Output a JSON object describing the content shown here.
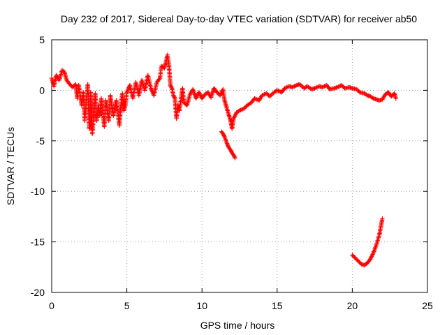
{
  "chart_data": {
    "type": "scatter",
    "title": "Day 232 of 2017, Sidereal Day-to-day VTEC variation (SDTVAR) for receiver ab50",
    "xlabel": "GPS time / hours",
    "ylabel": "SDTVAR / TECUs",
    "xlim": [
      0,
      25
    ],
    "ylim": [
      -20,
      5
    ],
    "xticks": [
      0,
      5,
      10,
      15,
      20,
      25
    ],
    "yticks": [
      5,
      0,
      -5,
      -10,
      -15,
      -20
    ],
    "grid": true,
    "marker": "+",
    "color": "#ff0000",
    "series": [
      {
        "name": "SDTVAR main",
        "points": [
          [
            0.0,
            1.2
          ],
          [
            0.15,
            0.4
          ],
          [
            0.3,
            1.5
          ],
          [
            0.5,
            1.0
          ],
          [
            0.7,
            2.0
          ],
          [
            0.85,
            1.8
          ],
          [
            1.0,
            1.0
          ],
          [
            1.2,
            0.6
          ],
          [
            1.4,
            0.3
          ],
          [
            1.6,
            0.6
          ],
          [
            1.7,
            -0.8
          ],
          [
            1.8,
            0.5
          ],
          [
            2.0,
            -1.5
          ],
          [
            2.1,
            -0.2
          ],
          [
            2.2,
            -3.0
          ],
          [
            2.3,
            -1.2
          ],
          [
            2.4,
            0.6
          ],
          [
            2.5,
            -3.8
          ],
          [
            2.6,
            -0.2
          ],
          [
            2.7,
            -4.3
          ],
          [
            2.8,
            -2.5
          ],
          [
            2.9,
            -0.3
          ],
          [
            3.0,
            -3.0
          ],
          [
            3.1,
            -1.5
          ],
          [
            3.2,
            -2.5
          ],
          [
            3.3,
            -0.8
          ],
          [
            3.5,
            -3.6
          ],
          [
            3.6,
            -1.0
          ],
          [
            3.8,
            -3.0
          ],
          [
            3.9,
            -0.5
          ],
          [
            4.1,
            -2.5
          ],
          [
            4.3,
            -1.0
          ],
          [
            4.5,
            -3.5
          ],
          [
            4.6,
            -1.5
          ],
          [
            4.7,
            -0.3
          ],
          [
            4.8,
            -2.0
          ],
          [
            4.9,
            -1.5
          ],
          [
            5.0,
            -0.2
          ],
          [
            5.2,
            0.5
          ],
          [
            5.4,
            -0.8
          ],
          [
            5.6,
            0.8
          ],
          [
            5.8,
            -0.5
          ],
          [
            6.0,
            1.0
          ],
          [
            6.2,
            0.0
          ],
          [
            6.4,
            1.5
          ],
          [
            6.6,
            0.2
          ],
          [
            6.8,
            -0.5
          ],
          [
            7.0,
            0.8
          ],
          [
            7.2,
            1.2
          ],
          [
            7.3,
            2.4
          ],
          [
            7.5,
            2.2
          ],
          [
            7.6,
            2.8
          ],
          [
            7.7,
            3.5
          ],
          [
            7.8,
            2.5
          ],
          [
            7.9,
            0.5
          ],
          [
            8.0,
            0.2
          ],
          [
            8.1,
            -0.5
          ],
          [
            8.2,
            -0.8
          ],
          [
            8.3,
            -2.8
          ],
          [
            8.4,
            -1.5
          ],
          [
            8.5,
            -2.0
          ],
          [
            8.7,
            0.2
          ],
          [
            8.8,
            -1.2
          ],
          [
            9.0,
            -1.5
          ],
          [
            9.2,
            -0.4
          ],
          [
            9.4,
            0.1
          ],
          [
            9.6,
            -0.8
          ],
          [
            9.8,
            -0.2
          ],
          [
            10.0,
            -0.8
          ],
          [
            10.2,
            -0.4
          ],
          [
            10.4,
            -0.2
          ],
          [
            10.6,
            -0.7
          ],
          [
            10.8,
            0.2
          ],
          [
            11.0,
            -0.2
          ],
          [
            11.2,
            -0.5
          ],
          [
            11.4,
            0.1
          ],
          [
            11.5,
            -1.0
          ],
          [
            11.6,
            -1.5
          ],
          [
            11.7,
            -2.0
          ],
          [
            11.8,
            -2.5
          ],
          [
            11.9,
            -3.0
          ],
          [
            12.0,
            -3.8
          ],
          [
            12.1,
            -2.8
          ],
          [
            12.3,
            -2.2
          ],
          [
            12.5,
            -2.0
          ],
          [
            12.8,
            -1.8
          ],
          [
            13.0,
            -1.5
          ],
          [
            13.3,
            -1.2
          ],
          [
            13.5,
            -0.8
          ],
          [
            13.8,
            -1.0
          ],
          [
            14.0,
            -0.5
          ],
          [
            14.3,
            -0.3
          ],
          [
            14.5,
            -0.6
          ],
          [
            14.8,
            -0.2
          ],
          [
            15.0,
            0.0
          ],
          [
            15.3,
            -0.2
          ],
          [
            15.5,
            0.2
          ],
          [
            15.8,
            0.4
          ],
          [
            16.0,
            0.3
          ],
          [
            16.3,
            0.5
          ],
          [
            16.5,
            0.6
          ],
          [
            16.8,
            0.2
          ],
          [
            17.0,
            0.4
          ],
          [
            17.3,
            0.1
          ],
          [
            17.5,
            0.2
          ],
          [
            17.8,
            0.4
          ],
          [
            18.0,
            0.3
          ],
          [
            18.3,
            0.5
          ],
          [
            18.5,
            0.1
          ],
          [
            18.8,
            0.2
          ],
          [
            19.0,
            0.3
          ],
          [
            19.3,
            0.5
          ],
          [
            19.5,
            0.2
          ],
          [
            19.8,
            0.3
          ],
          [
            20.0,
            0.2
          ],
          [
            20.3,
            0.1
          ],
          [
            20.5,
            -0.2
          ],
          [
            20.8,
            -0.3
          ],
          [
            21.0,
            -0.5
          ],
          [
            21.2,
            -0.6
          ],
          [
            21.4,
            -0.8
          ],
          [
            21.6,
            -0.9
          ],
          [
            21.8,
            -1.0
          ],
          [
            22.0,
            -0.9
          ],
          [
            22.2,
            -0.4
          ],
          [
            22.4,
            -0.2
          ],
          [
            22.6,
            -0.6
          ],
          [
            22.8,
            -0.3
          ],
          [
            22.9,
            -0.8
          ]
        ]
      },
      {
        "name": "SDTVAR segment 2",
        "points": [
          [
            11.3,
            -4.1
          ],
          [
            11.4,
            -4.3
          ],
          [
            11.5,
            -4.6
          ],
          [
            11.6,
            -5.0
          ],
          [
            11.7,
            -5.4
          ],
          [
            11.8,
            -5.7
          ],
          [
            11.9,
            -5.9
          ],
          [
            12.0,
            -6.2
          ],
          [
            12.1,
            -6.4
          ],
          [
            12.2,
            -6.7
          ]
        ]
      },
      {
        "name": "SDTVAR segment 3",
        "points": [
          [
            20.0,
            -16.3
          ],
          [
            20.2,
            -16.6
          ],
          [
            20.4,
            -16.9
          ],
          [
            20.6,
            -17.2
          ],
          [
            20.8,
            -17.3
          ],
          [
            21.0,
            -17.1
          ],
          [
            21.2,
            -16.7
          ],
          [
            21.4,
            -16.1
          ],
          [
            21.6,
            -15.3
          ],
          [
            21.8,
            -14.3
          ],
          [
            21.9,
            -13.5
          ],
          [
            22.0,
            -12.7
          ]
        ]
      }
    ]
  }
}
